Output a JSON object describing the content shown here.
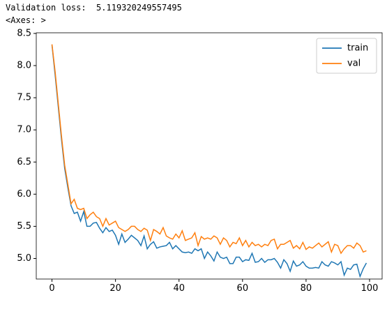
{
  "output_lines": [
    "Validation loss:  5.119320249557495",
    "<Axes: >"
  ],
  "chart_data": {
    "type": "line",
    "x": [
      0,
      1,
      2,
      3,
      4,
      5,
      6,
      7,
      8,
      9,
      10,
      11,
      12,
      13,
      14,
      15,
      16,
      17,
      18,
      19,
      20,
      21,
      22,
      23,
      24,
      25,
      26,
      27,
      28,
      29,
      30,
      31,
      32,
      33,
      34,
      35,
      36,
      37,
      38,
      39,
      40,
      41,
      42,
      43,
      44,
      45,
      46,
      47,
      48,
      49,
      50,
      51,
      52,
      53,
      54,
      55,
      56,
      57,
      58,
      59,
      60,
      61,
      62,
      63,
      64,
      65,
      66,
      67,
      68,
      69,
      70,
      71,
      72,
      73,
      74,
      75,
      76,
      77,
      78,
      79,
      80,
      81,
      82,
      83,
      84,
      85,
      86,
      87,
      88,
      89,
      90,
      91,
      92,
      93,
      94,
      95,
      96,
      97,
      98,
      99
    ],
    "series": [
      {
        "name": "train",
        "color": "#1f77b4",
        "values": [
          8.32,
          7.85,
          7.35,
          6.85,
          6.4,
          6.1,
          5.82,
          5.7,
          5.72,
          5.58,
          5.73,
          5.5,
          5.5,
          5.55,
          5.56,
          5.47,
          5.4,
          5.48,
          5.42,
          5.44,
          5.36,
          5.22,
          5.38,
          5.25,
          5.3,
          5.36,
          5.32,
          5.28,
          5.2,
          5.35,
          5.15,
          5.22,
          5.26,
          5.16,
          5.18,
          5.19,
          5.2,
          5.25,
          5.15,
          5.2,
          5.15,
          5.1,
          5.09,
          5.1,
          5.08,
          5.15,
          5.12,
          5.15,
          5.0,
          5.1,
          5.04,
          4.96,
          5.1,
          5.02,
          5.0,
          5.02,
          4.92,
          4.92,
          5.02,
          5.02,
          4.95,
          4.98,
          4.97,
          5.08,
          4.94,
          4.95,
          5.0,
          4.94,
          4.98,
          4.98,
          5.0,
          4.94,
          4.85,
          4.98,
          4.92,
          4.8,
          4.96,
          4.88,
          4.9,
          4.95,
          4.88,
          4.85,
          4.85,
          4.86,
          4.85,
          4.95,
          4.9,
          4.88,
          4.95,
          4.93,
          4.9,
          4.95,
          4.74,
          4.85,
          4.83,
          4.9,
          4.91,
          4.72,
          4.84,
          4.93
        ]
      },
      {
        "name": "val",
        "color": "#ff7f0e",
        "values": [
          8.33,
          7.9,
          7.4,
          6.9,
          6.45,
          6.15,
          5.85,
          5.92,
          5.78,
          5.76,
          5.78,
          5.62,
          5.68,
          5.72,
          5.65,
          5.62,
          5.5,
          5.62,
          5.52,
          5.55,
          5.58,
          5.48,
          5.45,
          5.42,
          5.45,
          5.5,
          5.5,
          5.45,
          5.42,
          5.47,
          5.44,
          5.28,
          5.45,
          5.42,
          5.38,
          5.48,
          5.35,
          5.32,
          5.3,
          5.38,
          5.32,
          5.43,
          5.28,
          5.3,
          5.32,
          5.4,
          5.2,
          5.34,
          5.3,
          5.32,
          5.3,
          5.35,
          5.32,
          5.22,
          5.32,
          5.28,
          5.18,
          5.25,
          5.23,
          5.32,
          5.2,
          5.28,
          5.18,
          5.25,
          5.2,
          5.22,
          5.18,
          5.22,
          5.2,
          5.28,
          5.3,
          5.15,
          5.22,
          5.22,
          5.25,
          5.28,
          5.16,
          5.2,
          5.15,
          5.25,
          5.14,
          5.18,
          5.16,
          5.2,
          5.24,
          5.18,
          5.22,
          5.26,
          5.1,
          5.22,
          5.2,
          5.08,
          5.15,
          5.2,
          5.2,
          5.16,
          5.24,
          5.2,
          5.1,
          5.12
        ]
      }
    ],
    "xlim": [
      -4.95,
      103.95
    ],
    "xticks": [
      0,
      20,
      40,
      60,
      80,
      100
    ],
    "ylim": [
      4.68,
      8.51
    ],
    "yticks": [
      {
        "value": 5,
        "label": "5.0"
      },
      5.5,
      {
        "value": 6,
        "label": "6.0"
      },
      6.5,
      {
        "value": 7,
        "label": "7.0"
      },
      7.5,
      {
        "value": 8,
        "label": "8.0"
      },
      8.5
    ],
    "legend": "upper right",
    "grid": false
  }
}
